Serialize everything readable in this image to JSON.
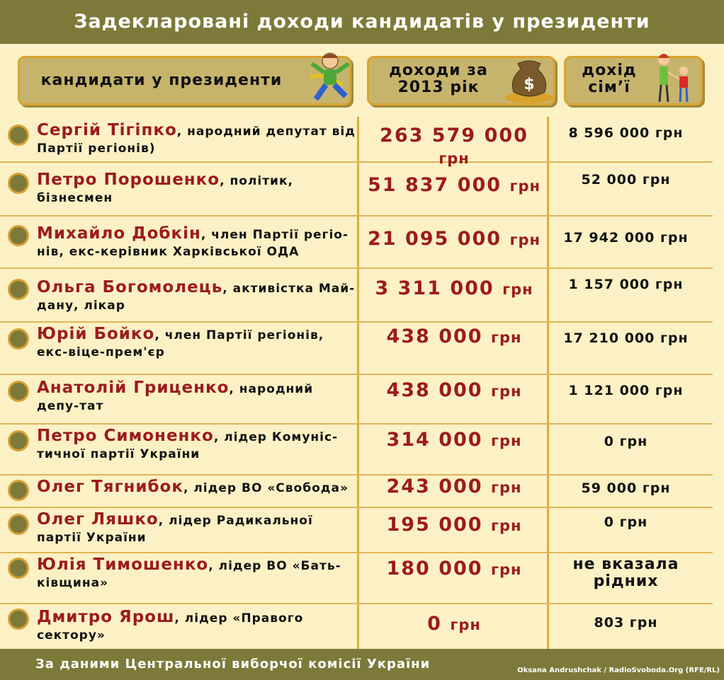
{
  "title": "Задекларовані доходи кандидатів у президенти",
  "headers": {
    "candidates": "кандидати у президенти",
    "income_line1": "доходи за",
    "income_line2": "2013 рік",
    "family_line1": "дохід",
    "family_line2": "сім’ї"
  },
  "rows": [
    {
      "name": "Сергій Тігіпко",
      "desc": ", народний депутат від Партії регіонів)",
      "income": "263 579 000",
      "unit": "грн",
      "family": "8 596 000 грн"
    },
    {
      "name": "Петро Порошенко",
      "desc": ", політик, бізнесмен",
      "income": "51 837 000",
      "unit": "грн",
      "family": "52 000 грн"
    },
    {
      "name": "Михайло Добкін",
      "desc": ", член Партії регіо-нів, екс-керівник Харківської ОДА",
      "income": "21 095 000",
      "unit": "грн",
      "family": "17 942 000 грн"
    },
    {
      "name": "Ольга Богомолець",
      "desc": ", активістка Май-дану, лікар",
      "income": "3 311 000",
      "unit": "грн",
      "family": "1 157 000 грн"
    },
    {
      "name": "Юрій Бойко",
      "desc": ", член Партії регіонів, екс-віце-прем'єр",
      "income": "438 000",
      "unit": "грн",
      "family": "17 210 000 грн"
    },
    {
      "name": "Анатолій Гриценко",
      "desc": ", народний депу-тат",
      "income": "438 000",
      "unit": "грн",
      "family": "1 121 000 грн"
    },
    {
      "name": "Петро Симоненко",
      "desc": ", лідер Комуніс-тичної партії України",
      "income": "314 000",
      "unit": "грн",
      "family": "0 грн"
    },
    {
      "name": "Олег Тягнибок",
      "desc": ", лідер ВО «Свобода»",
      "income": "243 000",
      "unit": "грн",
      "family": "59 000 грн"
    },
    {
      "name": "Олег Ляшко",
      "desc": ", лідер Радикальної партії України",
      "income": "195 000",
      "unit": "грн",
      "family": "0 грн"
    },
    {
      "name": "Юлія Тимошенко",
      "desc": ", лідер ВО «Бать-ківщина»",
      "income": "180 000",
      "unit": "грн",
      "family": "не вказала рідних"
    },
    {
      "name": "Дмитро Ярош",
      "desc": ", лідер «Правого сектору»",
      "income": "0",
      "unit": "грн",
      "family": "803 грн"
    }
  ],
  "footer": {
    "source": "За даними Центральної виборчої комісії України",
    "credit": "Oksana Andrushchak / RadioSvoboda.Org (RFE/RL)"
  },
  "colors": {
    "banner": "#7d7a39",
    "background": "#fbf1c4",
    "name": "#9c1b1b",
    "accent": "#e1aa3b"
  }
}
